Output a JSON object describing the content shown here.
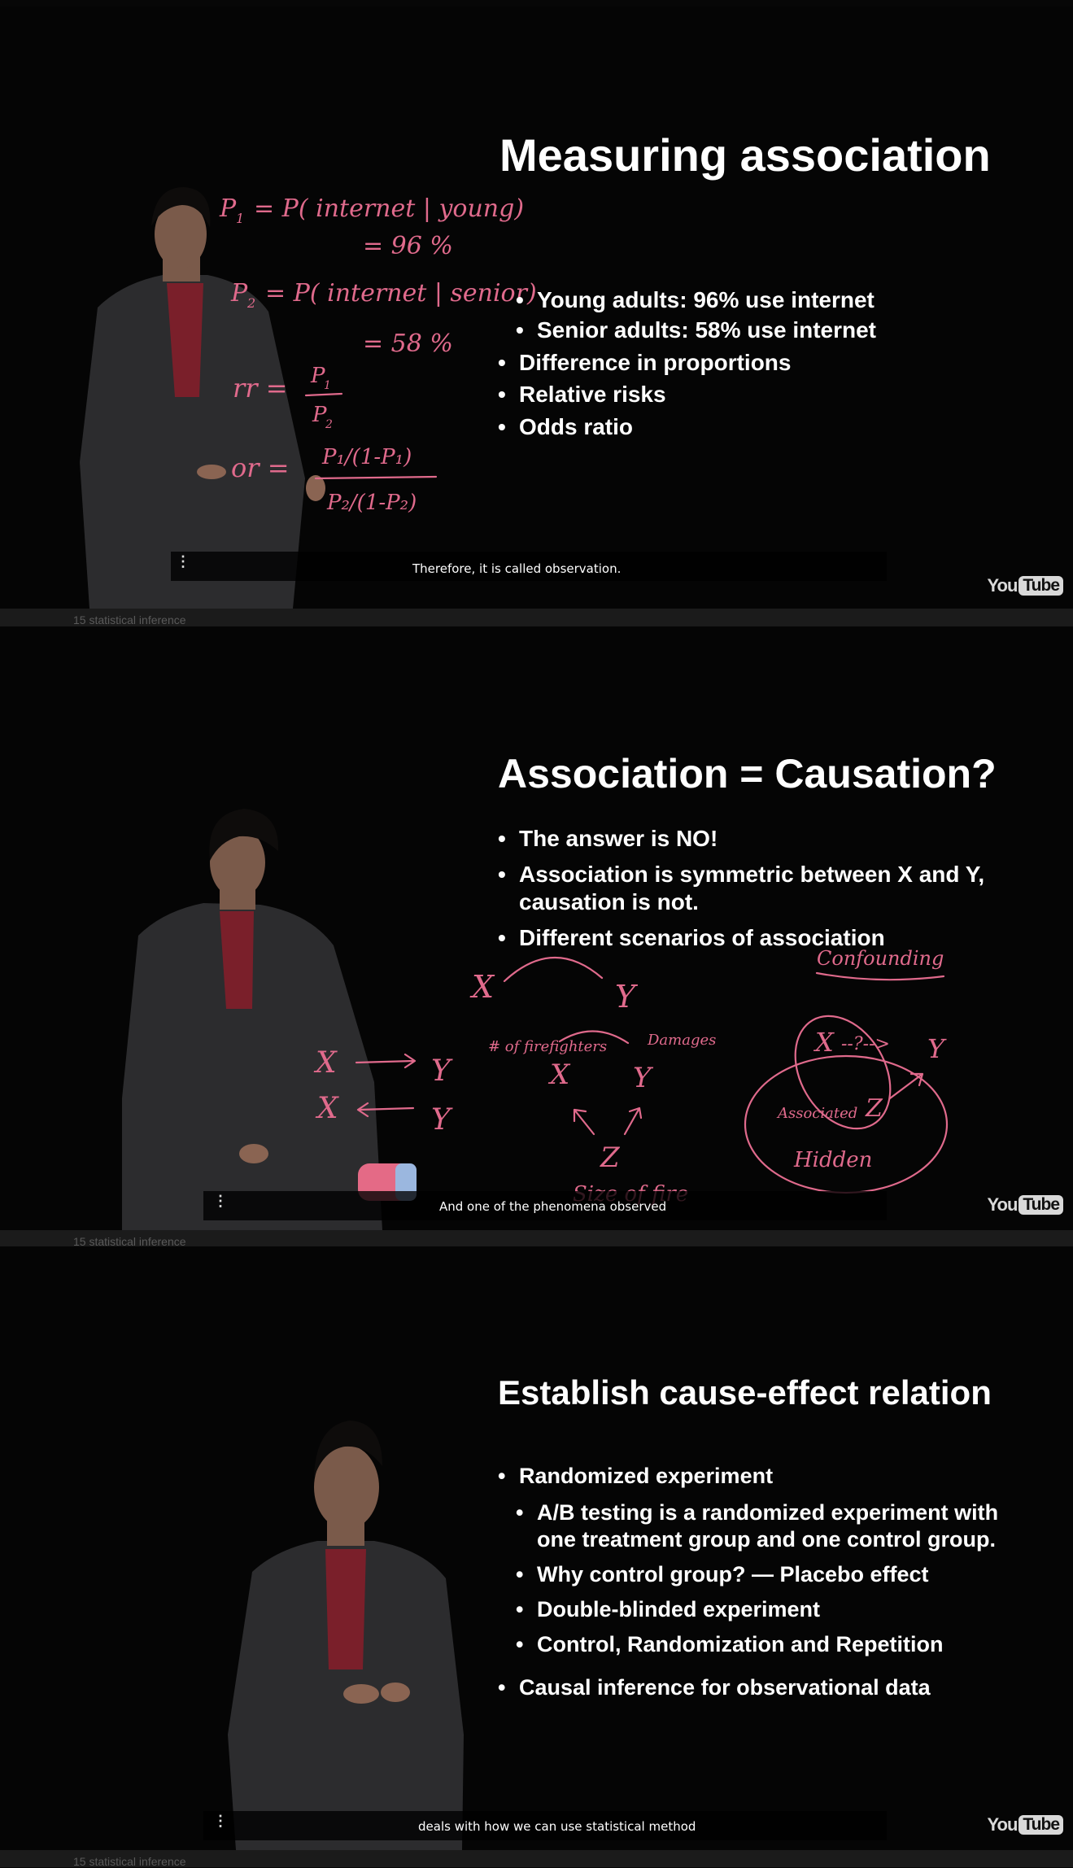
{
  "panels": [
    {
      "title": "Measuring association",
      "bullets": [
        {
          "text": "Young adults: 96% use internet",
          "level": 2
        },
        {
          "text": "Senior adults: 58% use internet",
          "level": 2
        },
        {
          "text": "Difference in proportions",
          "level": 1
        },
        {
          "text": "Relative risks",
          "level": 1
        },
        {
          "text": "Odds ratio",
          "level": 1
        }
      ],
      "caption": "Therefore, it is called observation.",
      "watermark": {
        "you": "You",
        "tube": "Tube"
      }
    },
    {
      "title": "Association = Causation?",
      "bullets": [
        {
          "text": "The answer is NO!",
          "level": 1
        },
        {
          "text": "Association is symmetric between X and Y, causation is not.",
          "level": 1
        },
        {
          "text": "Different scenarios of association",
          "level": 1
        }
      ],
      "caption": "And one of the phenomena observed",
      "watermark": {
        "you": "You",
        "tube": "Tube"
      }
    },
    {
      "title": "Establish cause-effect relation",
      "bullets": [
        {
          "text": "Randomized experiment",
          "level": 1
        },
        {
          "text": "A/B testing is a randomized experiment with one treatment group and one control group.",
          "level": 2
        },
        {
          "text": "Why control group? — Placebo effect",
          "level": 2
        },
        {
          "text": "Double-blinded experiment",
          "level": 2
        },
        {
          "text": "Control, Randomization and Repetition",
          "level": 2
        },
        {
          "text": "Causal inference for observational data",
          "level": 1
        }
      ],
      "caption": "deals with how we can use statistical method",
      "watermark": {
        "you": "You",
        "tube": "Tube"
      }
    }
  ],
  "handwriting": {
    "p1": {
      "a": "P",
      "b": "1",
      "c": "= P( internet | young)",
      "d": "= 96 %"
    },
    "p2": {
      "a": "P",
      "b": "2",
      "c": "= P( internet | senior)",
      "d": "= 58 %"
    },
    "rr": {
      "lhs": "rr =",
      "num": "P",
      "num_sub": "1",
      "den": "P",
      "den_sub": "2"
    },
    "or": {
      "lhs": "or =",
      "num": "P₁/(1-P₁)",
      "den": "P₂/(1-P₂)"
    },
    "diagrams": {
      "x": "X",
      "y": "Y",
      "z": "Z",
      "firefighters": "# of firefighters",
      "damages": "Damages",
      "size_of_fire": "Size of fire",
      "confounding": "Confounding",
      "associated": "Associated",
      "hidden": "Hidden",
      "q": "--?-->"
    }
  },
  "gap_labels": [
    "15 statistical inference",
    "15 statistical inference",
    "15 statistical inference"
  ],
  "colors": {
    "ink": "#e06a8c",
    "text": "#ffffff",
    "background": "#050505"
  }
}
